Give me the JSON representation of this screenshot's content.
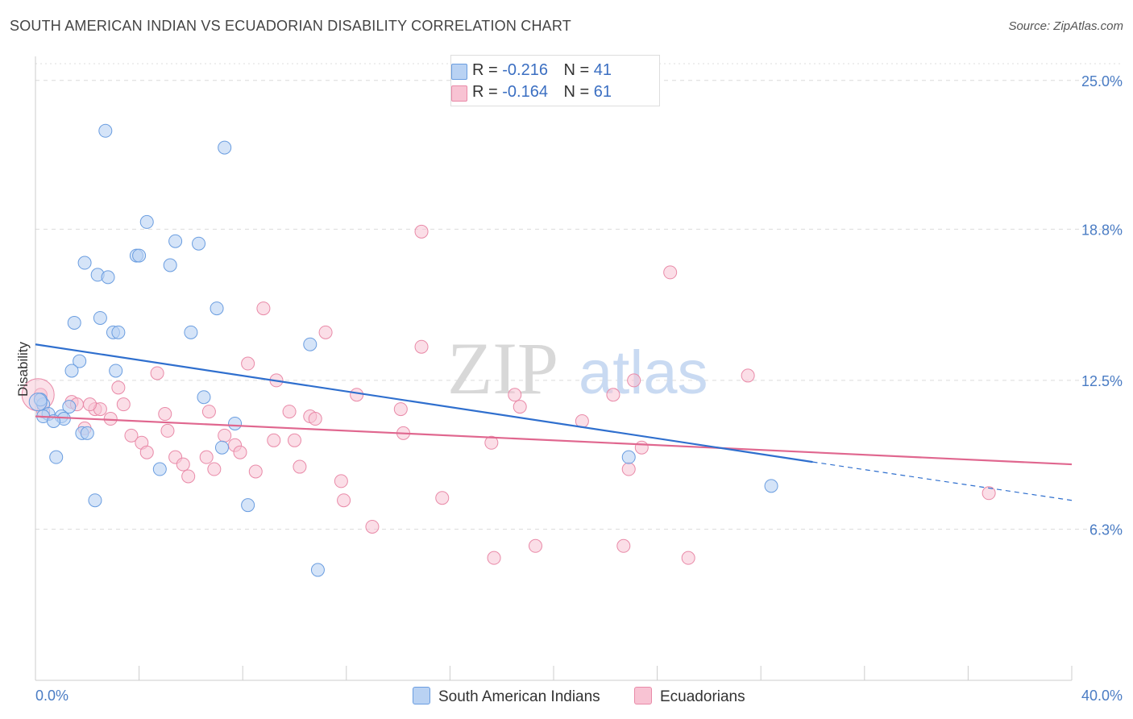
{
  "title": "SOUTH AMERICAN INDIAN VS ECUADORIAN DISABILITY CORRELATION CHART",
  "source": "Source: ZipAtlas.com",
  "watermark": {
    "zip": "ZIP",
    "atlas": "atlas"
  },
  "colors": {
    "blue_fill": "#b9d2f3",
    "blue_stroke": "#6a9de0",
    "blue_line": "#2f6fce",
    "pink_fill": "#f8c3d3",
    "pink_stroke": "#e98aa8",
    "pink_line": "#e0678f",
    "tick_text": "#4a7cc4",
    "grid": "#dcdcdc"
  },
  "legend": {
    "rows": [
      {
        "r_label": "R = ",
        "r_value": "-0.216",
        "n_label": "N = ",
        "n_value": "41"
      },
      {
        "r_label": "R = ",
        "r_value": "-0.164",
        "n_label": "N = ",
        "n_value": "61"
      }
    ]
  },
  "bottom_legend": [
    "South American Indians",
    "Ecuadorians"
  ],
  "chart_data": {
    "type": "scatter",
    "title": "SOUTH AMERICAN INDIAN VS ECUADORIAN DISABILITY CORRELATION CHART",
    "xlabel": "",
    "ylabel": "Disability",
    "xlim": [
      0,
      40
    ],
    "ylim": [
      0,
      26
    ],
    "x_tick_labels": [
      "0.0%",
      "40.0%"
    ],
    "y_ticks": [
      6.3,
      12.5,
      18.8,
      25.0
    ],
    "y_tick_labels": [
      "6.3%",
      "12.5%",
      "18.8%",
      "25.0%"
    ],
    "grid": "horizontal dashed",
    "legend_position": "top-center",
    "series": [
      {
        "name": "South American Indians",
        "r": -0.216,
        "n": 41,
        "trend": {
          "x0": 0,
          "y0": 14.0,
          "x1": 30,
          "y1": 9.1,
          "dash_to_x": 40,
          "dash_to_y": 7.5
        },
        "points": [
          [
            2.7,
            22.9
          ],
          [
            7.3,
            22.2
          ],
          [
            4.3,
            19.1
          ],
          [
            5.4,
            18.3
          ],
          [
            6.3,
            18.2
          ],
          [
            3.9,
            17.7
          ],
          [
            4.0,
            17.7
          ],
          [
            1.9,
            17.4
          ],
          [
            5.2,
            17.3
          ],
          [
            2.4,
            16.9
          ],
          [
            2.8,
            16.8
          ],
          [
            7.0,
            15.5
          ],
          [
            2.5,
            15.1
          ],
          [
            1.5,
            14.9
          ],
          [
            3.0,
            14.5
          ],
          [
            3.2,
            14.5
          ],
          [
            6.0,
            14.5
          ],
          [
            10.6,
            14.0
          ],
          [
            1.7,
            13.3
          ],
          [
            1.4,
            12.9
          ],
          [
            3.1,
            12.9
          ],
          [
            6.5,
            11.8
          ],
          [
            0.3,
            11.5
          ],
          [
            1.3,
            11.4
          ],
          [
            0.5,
            11.1
          ],
          [
            0.3,
            11.0
          ],
          [
            1.0,
            11.0
          ],
          [
            1.1,
            10.9
          ],
          [
            0.7,
            10.8
          ],
          [
            7.7,
            10.7
          ],
          [
            1.8,
            10.3
          ],
          [
            2.0,
            10.3
          ],
          [
            7.2,
            9.7
          ],
          [
            0.8,
            9.3
          ],
          [
            4.8,
            8.8
          ],
          [
            22.9,
            9.3
          ],
          [
            28.4,
            8.1
          ],
          [
            2.3,
            7.5
          ],
          [
            8.2,
            7.3
          ],
          [
            10.9,
            4.6
          ],
          [
            0.2,
            11.7
          ]
        ]
      },
      {
        "name": "Ecuadorians",
        "r": -0.164,
        "n": 61,
        "trend": {
          "x0": 0,
          "y0": 11.0,
          "x1": 40,
          "y1": 9.0
        },
        "points": [
          [
            14.9,
            18.7
          ],
          [
            24.5,
            17.0
          ],
          [
            8.8,
            15.5
          ],
          [
            11.2,
            14.5
          ],
          [
            14.9,
            13.9
          ],
          [
            8.2,
            13.2
          ],
          [
            4.7,
            12.8
          ],
          [
            27.5,
            12.7
          ],
          [
            9.3,
            12.5
          ],
          [
            23.1,
            12.5
          ],
          [
            3.2,
            12.2
          ],
          [
            12.4,
            11.9
          ],
          [
            18.5,
            11.9
          ],
          [
            22.3,
            11.9
          ],
          [
            1.4,
            11.6
          ],
          [
            1.6,
            11.5
          ],
          [
            3.4,
            11.5
          ],
          [
            18.7,
            11.4
          ],
          [
            14.1,
            11.3
          ],
          [
            2.3,
            11.3
          ],
          [
            2.5,
            11.3
          ],
          [
            9.8,
            11.2
          ],
          [
            6.7,
            11.2
          ],
          [
            5.0,
            11.1
          ],
          [
            10.6,
            11.0
          ],
          [
            10.8,
            10.9
          ],
          [
            2.9,
            10.9
          ],
          [
            21.1,
            10.8
          ],
          [
            1.9,
            10.5
          ],
          [
            5.1,
            10.4
          ],
          [
            14.2,
            10.3
          ],
          [
            3.7,
            10.2
          ],
          [
            7.3,
            10.2
          ],
          [
            9.2,
            10.0
          ],
          [
            10.0,
            10.0
          ],
          [
            4.1,
            9.9
          ],
          [
            17.6,
            9.9
          ],
          [
            7.7,
            9.8
          ],
          [
            23.4,
            9.7
          ],
          [
            4.3,
            9.5
          ],
          [
            7.9,
            9.5
          ],
          [
            5.4,
            9.3
          ],
          [
            6.6,
            9.3
          ],
          [
            5.7,
            9.0
          ],
          [
            10.2,
            8.9
          ],
          [
            6.9,
            8.8
          ],
          [
            8.5,
            8.7
          ],
          [
            22.9,
            8.8
          ],
          [
            5.9,
            8.5
          ],
          [
            11.8,
            8.3
          ],
          [
            36.8,
            7.8
          ],
          [
            15.7,
            7.6
          ],
          [
            11.9,
            7.5
          ],
          [
            13.0,
            6.4
          ],
          [
            19.3,
            5.6
          ],
          [
            17.7,
            5.1
          ],
          [
            22.7,
            5.6
          ],
          [
            25.2,
            5.1
          ],
          [
            0.2,
            11.9
          ],
          [
            0.3,
            11.2
          ],
          [
            2.1,
            11.5
          ]
        ]
      }
    ]
  }
}
